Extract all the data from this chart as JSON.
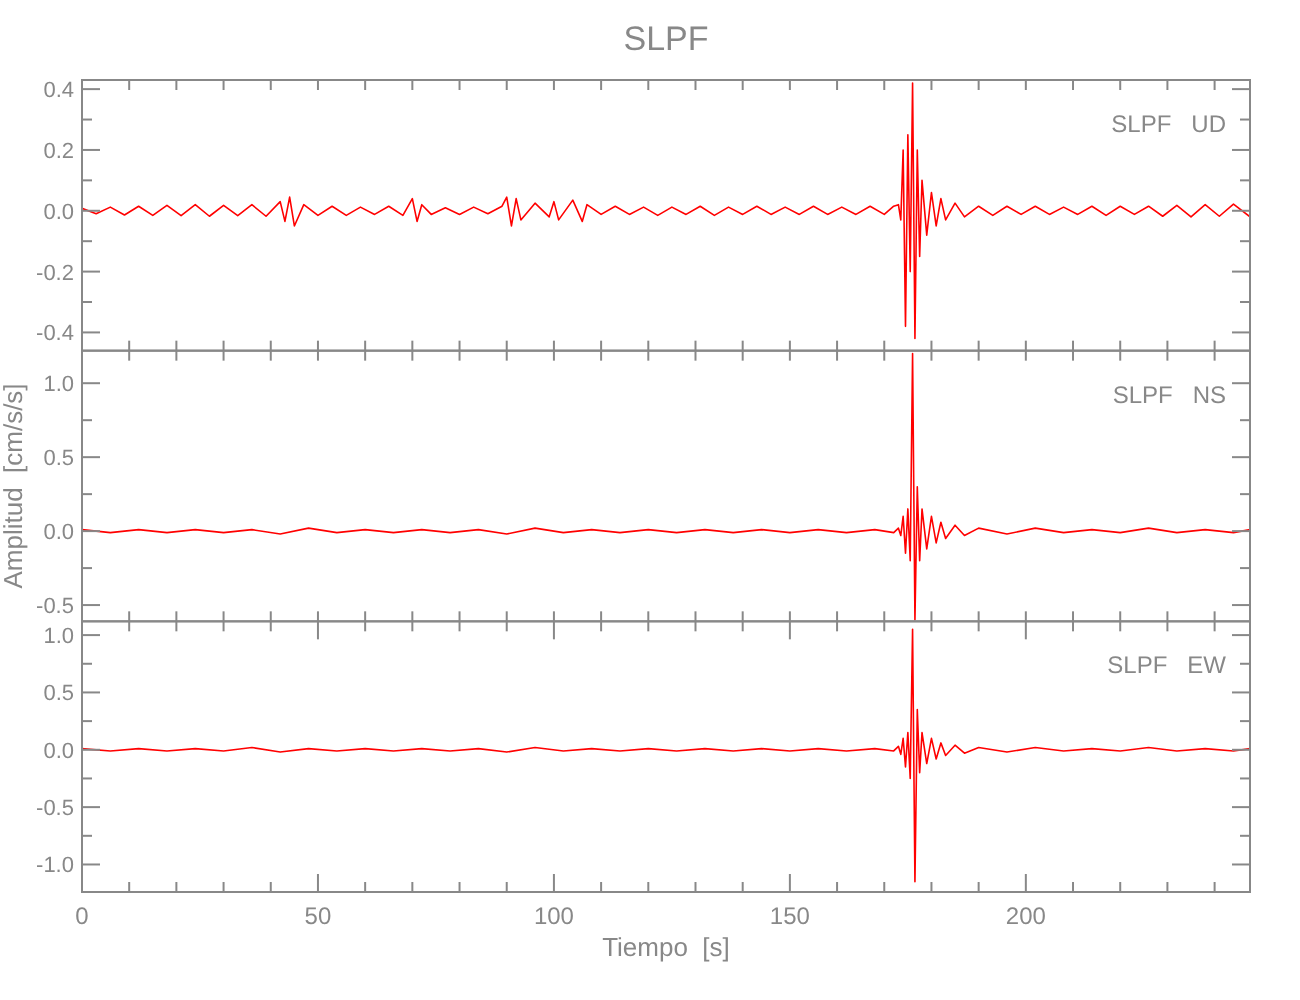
{
  "chart_data": [
    {
      "type": "line",
      "title": "SLPF",
      "annotations": [
        "SLPF   UD"
      ],
      "tick_labels": "y",
      "grid": false,
      "marker": "none",
      "line_style": "solid",
      "xlim": [
        0,
        247.5
      ],
      "xticks": [
        {
          "value": 0,
          "label": null
        },
        {
          "value": 10,
          "label": null
        },
        {
          "value": 20,
          "label": null
        },
        {
          "value": 30,
          "label": null
        },
        {
          "value": 40,
          "label": null
        },
        {
          "value": 50,
          "label": null
        },
        {
          "value": 60,
          "label": null
        },
        {
          "value": 70,
          "label": null
        },
        {
          "value": 80,
          "label": null
        },
        {
          "value": 90,
          "label": null
        },
        {
          "value": 100,
          "label": null
        },
        {
          "value": 110,
          "label": null
        },
        {
          "value": 120,
          "label": null
        },
        {
          "value": 130,
          "label": null
        },
        {
          "value": 140,
          "label": null
        },
        {
          "value": 150,
          "label": null
        },
        {
          "value": 160,
          "label": null
        },
        {
          "value": 170,
          "label": null
        },
        {
          "value": 180,
          "label": null
        },
        {
          "value": 190,
          "label": null
        },
        {
          "value": 200,
          "label": null
        },
        {
          "value": 210,
          "label": null
        },
        {
          "value": 220,
          "label": null
        },
        {
          "value": 230,
          "label": null
        },
        {
          "value": 240,
          "label": null
        }
      ],
      "ylim": [
        -0.46,
        0.43
      ],
      "yticks": [
        {
          "value": -0.4,
          "label": "-0.4"
        },
        {
          "value": -0.3,
          "label": null
        },
        {
          "value": -0.2,
          "label": "-0.2"
        },
        {
          "value": -0.1,
          "label": null
        },
        {
          "value": 0,
          "label": "0.0"
        },
        {
          "value": 0.1,
          "label": null
        },
        {
          "value": 0.2,
          "label": "0.2"
        },
        {
          "value": 0.3,
          "label": null
        },
        {
          "value": 0.4,
          "label": "0.4"
        }
      ],
      "series": [
        {
          "color": "#ff0000",
          "x": [
            0,
            3,
            6,
            9,
            12,
            15,
            18,
            21,
            24,
            27,
            30,
            33,
            36,
            39,
            42,
            43,
            44,
            45,
            47,
            50,
            53,
            56,
            59,
            62,
            65,
            68,
            70,
            71,
            72,
            74,
            77,
            80,
            83,
            86,
            89,
            90,
            91,
            92,
            93,
            96,
            99,
            100,
            101,
            104,
            106,
            107,
            110,
            113,
            116,
            119,
            122,
            125,
            128,
            131,
            134,
            137,
            140,
            143,
            146,
            149,
            152,
            155,
            158,
            161,
            164,
            167,
            170,
            172,
            173,
            173.5,
            174,
            174.5,
            175,
            175.5,
            176,
            176.5,
            177,
            177.5,
            178,
            179,
            180,
            181,
            182,
            183,
            185,
            187,
            190,
            193,
            196,
            199,
            202,
            205,
            208,
            211,
            214,
            217,
            220,
            223,
            226,
            229,
            232,
            235,
            238,
            241,
            244,
            247.5
          ],
          "values": [
            0.008,
            -0.01,
            0.012,
            -0.014,
            0.015,
            -0.015,
            0.018,
            -0.016,
            0.02,
            -0.018,
            0.018,
            -0.016,
            0.02,
            -0.018,
            0.03,
            -0.035,
            0.045,
            -0.05,
            0.02,
            -0.015,
            0.015,
            -0.015,
            0.012,
            -0.012,
            0.015,
            -0.015,
            0.04,
            -0.035,
            0.02,
            -0.012,
            0.01,
            -0.012,
            0.012,
            -0.01,
            0.015,
            0.045,
            -0.05,
            0.04,
            -0.03,
            0.025,
            -0.02,
            0.03,
            -0.03,
            0.035,
            -0.035,
            0.02,
            -0.012,
            0.015,
            -0.012,
            0.012,
            -0.015,
            0.012,
            -0.012,
            0.015,
            -0.015,
            0.012,
            -0.012,
            0.015,
            -0.012,
            0.012,
            -0.012,
            0.015,
            -0.012,
            0.012,
            -0.012,
            0.015,
            -0.012,
            0.015,
            0.02,
            -0.03,
            0.2,
            -0.38,
            0.25,
            -0.2,
            0.42,
            -0.42,
            0.2,
            -0.15,
            0.1,
            -0.08,
            0.06,
            -0.05,
            0.04,
            -0.03,
            0.025,
            -0.02,
            0.015,
            -0.015,
            0.015,
            -0.012,
            0.015,
            -0.012,
            0.012,
            -0.012,
            0.015,
            -0.015,
            0.015,
            -0.012,
            0.015,
            -0.018,
            0.018,
            -0.02,
            0.02,
            -0.018,
            0.022,
            -0.02
          ]
        }
      ]
    },
    {
      "type": "line",
      "ylabel": "Amplitud  [cm/s/s]",
      "annotations": [
        "SLPF   NS"
      ],
      "tick_labels": "y",
      "grid": false,
      "marker": "none",
      "line_style": "solid",
      "xlim": [
        0,
        247.5
      ],
      "xticks": [
        {
          "value": 0,
          "label": null
        },
        {
          "value": 10,
          "label": null
        },
        {
          "value": 20,
          "label": null
        },
        {
          "value": 30,
          "label": null
        },
        {
          "value": 40,
          "label": null
        },
        {
          "value": 50,
          "label": null
        },
        {
          "value": 60,
          "label": null
        },
        {
          "value": 70,
          "label": null
        },
        {
          "value": 80,
          "label": null
        },
        {
          "value": 90,
          "label": null
        },
        {
          "value": 100,
          "label": null
        },
        {
          "value": 110,
          "label": null
        },
        {
          "value": 120,
          "label": null
        },
        {
          "value": 130,
          "label": null
        },
        {
          "value": 140,
          "label": null
        },
        {
          "value": 150,
          "label": null
        },
        {
          "value": 160,
          "label": null
        },
        {
          "value": 170,
          "label": null
        },
        {
          "value": 180,
          "label": null
        },
        {
          "value": 190,
          "label": null
        },
        {
          "value": 200,
          "label": null
        },
        {
          "value": 210,
          "label": null
        },
        {
          "value": 220,
          "label": null
        },
        {
          "value": 230,
          "label": null
        },
        {
          "value": 240,
          "label": null
        }
      ],
      "ylim": [
        -0.61,
        1.22
      ],
      "yticks": [
        {
          "value": -0.5,
          "label": "-0.5"
        },
        {
          "value": -0.25,
          "label": null
        },
        {
          "value": 0,
          "label": "0.0"
        },
        {
          "value": 0.25,
          "label": null
        },
        {
          "value": 0.5,
          "label": "0.5"
        },
        {
          "value": 0.75,
          "label": null
        },
        {
          "value": 1,
          "label": "1.0"
        }
      ],
      "series": [
        {
          "color": "#ff0000",
          "x": [
            0,
            6,
            12,
            18,
            24,
            30,
            36,
            42,
            48,
            54,
            60,
            66,
            72,
            78,
            84,
            90,
            96,
            102,
            108,
            114,
            120,
            126,
            132,
            138,
            144,
            150,
            156,
            162,
            168,
            172,
            173,
            173.5,
            174,
            174.5,
            175,
            175.5,
            176,
            176.5,
            177,
            177.5,
            178,
            179,
            180,
            181,
            182,
            183,
            185,
            187,
            190,
            196,
            202,
            208,
            214,
            220,
            226,
            232,
            238,
            244,
            247.5
          ],
          "values": [
            0.01,
            -0.01,
            0.01,
            -0.01,
            0.01,
            -0.01,
            0.01,
            -0.02,
            0.02,
            -0.01,
            0.01,
            -0.01,
            0.01,
            -0.01,
            0.01,
            -0.02,
            0.02,
            -0.01,
            0.01,
            -0.01,
            0.01,
            -0.01,
            0.01,
            -0.01,
            0.01,
            -0.01,
            0.01,
            -0.01,
            0.01,
            -0.01,
            0.02,
            -0.03,
            0.1,
            -0.15,
            0.15,
            -0.2,
            1.2,
            -0.6,
            0.3,
            -0.2,
            0.15,
            -0.12,
            0.1,
            -0.08,
            0.06,
            -0.05,
            0.04,
            -0.03,
            0.02,
            -0.02,
            0.02,
            -0.01,
            0.01,
            -0.01,
            0.02,
            -0.01,
            0.01,
            -0.01,
            0.01
          ]
        }
      ]
    },
    {
      "type": "line",
      "xlabel": "Tiempo  [s]",
      "annotations": [
        "SLPF   EW"
      ],
      "grid": false,
      "marker": "none",
      "line_style": "solid",
      "xlim": [
        0,
        247.5
      ],
      "xticks": [
        0,
        {
          "value": 10,
          "label": null
        },
        {
          "value": 20,
          "label": null
        },
        {
          "value": 30,
          "label": null
        },
        {
          "value": 40,
          "label": null
        },
        50,
        {
          "value": 60,
          "label": null
        },
        {
          "value": 70,
          "label": null
        },
        {
          "value": 80,
          "label": null
        },
        {
          "value": 90,
          "label": null
        },
        100,
        {
          "value": 110,
          "label": null
        },
        {
          "value": 120,
          "label": null
        },
        {
          "value": 130,
          "label": null
        },
        {
          "value": 140,
          "label": null
        },
        150,
        {
          "value": 160,
          "label": null
        },
        {
          "value": 170,
          "label": null
        },
        {
          "value": 180,
          "label": null
        },
        {
          "value": 190,
          "label": null
        },
        200,
        {
          "value": 210,
          "label": null
        },
        {
          "value": 220,
          "label": null
        },
        {
          "value": 230,
          "label": null
        },
        {
          "value": 240,
          "label": null
        }
      ],
      "ylim": [
        -1.24,
        1.12
      ],
      "yticks": [
        {
          "value": -1,
          "label": "-1.0"
        },
        {
          "value": -0.75,
          "label": null
        },
        {
          "value": -0.5,
          "label": "-0.5"
        },
        {
          "value": -0.25,
          "label": null
        },
        {
          "value": 0,
          "label": "0.0"
        },
        {
          "value": 0.25,
          "label": null
        },
        {
          "value": 0.5,
          "label": "0.5"
        },
        {
          "value": 0.75,
          "label": null
        },
        {
          "value": 1,
          "label": "1.0"
        }
      ],
      "series": [
        {
          "color": "#ff0000",
          "x": [
            0,
            6,
            12,
            18,
            24,
            30,
            36,
            42,
            48,
            54,
            60,
            66,
            72,
            78,
            84,
            90,
            96,
            102,
            108,
            114,
            120,
            126,
            132,
            138,
            144,
            150,
            156,
            162,
            168,
            172,
            173,
            173.5,
            174,
            174.5,
            175,
            175.5,
            176,
            176.5,
            177,
            177.5,
            178,
            179,
            180,
            181,
            182,
            183,
            185,
            187,
            190,
            196,
            202,
            208,
            214,
            220,
            226,
            232,
            238,
            244,
            247.5
          ],
          "values": [
            0.01,
            -0.01,
            0.01,
            -0.01,
            0.01,
            -0.01,
            0.02,
            -0.02,
            0.01,
            -0.01,
            0.01,
            -0.01,
            0.01,
            -0.01,
            0.01,
            -0.02,
            0.02,
            -0.01,
            0.01,
            -0.01,
            0.01,
            -0.01,
            0.01,
            -0.01,
            0.01,
            -0.01,
            0.01,
            -0.01,
            0.01,
            -0.01,
            0.03,
            -0.04,
            0.1,
            -0.15,
            0.15,
            -0.25,
            1.05,
            -1.15,
            0.35,
            -0.2,
            0.15,
            -0.12,
            0.1,
            -0.08,
            0.06,
            -0.05,
            0.04,
            -0.03,
            0.02,
            -0.02,
            0.02,
            -0.01,
            0.01,
            -0.01,
            0.02,
            -0.01,
            0.01,
            -0.01,
            0.01
          ]
        }
      ]
    }
  ]
}
